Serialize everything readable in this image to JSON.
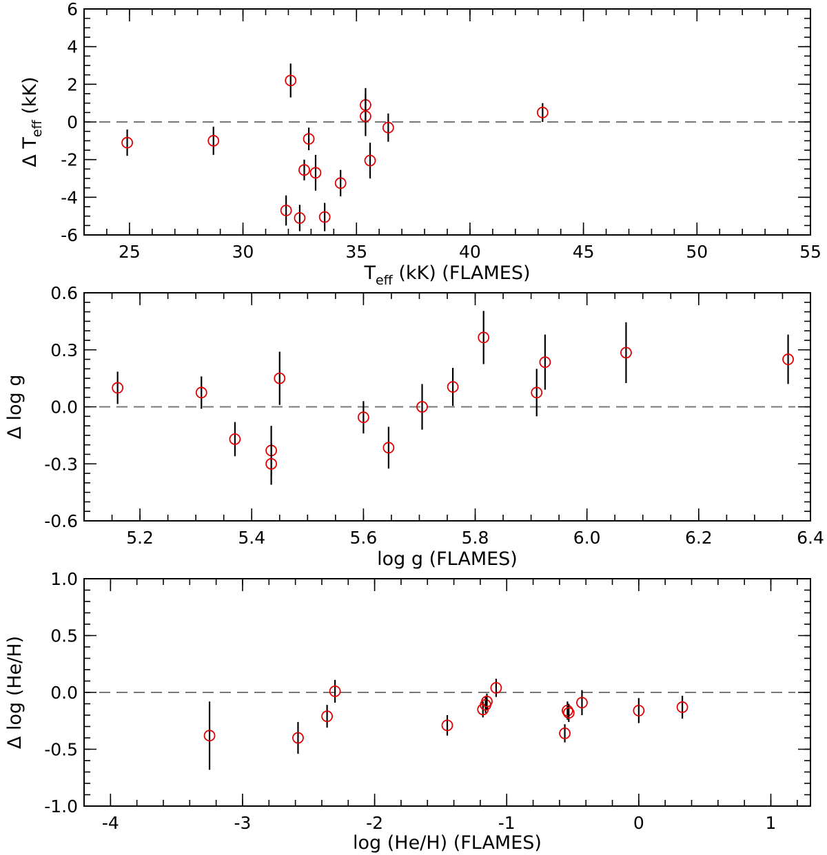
{
  "chart_data": [
    {
      "type": "scatter",
      "title": "",
      "xlabel": {
        "main": "T",
        "sub": "eff",
        "rest": " (kK) (FLAMES)"
      },
      "ylabel": {
        "main": "Δ T",
        "sub": "eff",
        "rest": " (kK)"
      },
      "xlim": [
        23,
        55
      ],
      "ylim": [
        -6,
        6
      ],
      "xticks": [
        25,
        30,
        35,
        40,
        45,
        50,
        55
      ],
      "xtick_labels": [
        "25",
        "30",
        "35",
        "40",
        "45",
        "50",
        "55"
      ],
      "yticks": [
        -6,
        -4,
        -2,
        0,
        2,
        4,
        6
      ],
      "ytick_labels": [
        "-6",
        "-4",
        "-2",
        "0",
        "2",
        "4",
        "6"
      ],
      "x_minor_step": 1,
      "y_minor_step": 0.5,
      "reference_line": 0,
      "points": [
        {
          "x": 24.9,
          "y": -1.1,
          "err": 0.7
        },
        {
          "x": 28.7,
          "y": -1.0,
          "err": 0.75
        },
        {
          "x": 31.9,
          "y": -4.7,
          "err": 0.8
        },
        {
          "x": 32.1,
          "y": 2.2,
          "err": 0.9
        },
        {
          "x": 32.5,
          "y": -5.1,
          "err": 0.7
        },
        {
          "x": 32.7,
          "y": -2.55,
          "err": 0.55
        },
        {
          "x": 32.9,
          "y": -0.9,
          "err": 0.6
        },
        {
          "x": 33.2,
          "y": -2.7,
          "err": 0.95
        },
        {
          "x": 33.6,
          "y": -5.05,
          "err": 0.75
        },
        {
          "x": 34.3,
          "y": -3.25,
          "err": 0.7
        },
        {
          "x": 35.4,
          "y": 0.9,
          "err": 0.9
        },
        {
          "x": 35.4,
          "y": 0.3,
          "err": 1.05
        },
        {
          "x": 35.6,
          "y": -2.05,
          "err": 0.95
        },
        {
          "x": 36.4,
          "y": -0.3,
          "err": 0.75
        },
        {
          "x": 43.2,
          "y": 0.5,
          "err": 0.5
        }
      ]
    },
    {
      "type": "scatter",
      "title": "",
      "xlabel": {
        "main": "log g (FLAMES)"
      },
      "ylabel": {
        "main": "Δ log g"
      },
      "xlim": [
        5.1,
        6.4
      ],
      "ylim": [
        -0.6,
        0.6
      ],
      "xticks": [
        5.2,
        5.4,
        5.6,
        5.8,
        6.0,
        6.2,
        6.4
      ],
      "xtick_labels": [
        "5.2",
        "5.4",
        "5.6",
        "5.8",
        "6.0",
        "6.2",
        "6.4"
      ],
      "yticks": [
        -0.6,
        -0.3,
        0.0,
        0.3,
        0.6
      ],
      "ytick_labels": [
        "-0.6",
        "-0.3",
        "0.0",
        "0.3",
        "0.6"
      ],
      "x_minor_step": 0.05,
      "y_minor_step": 0.05,
      "reference_line": 0,
      "points": [
        {
          "x": 5.16,
          "y": 0.1,
          "err": 0.085
        },
        {
          "x": 5.31,
          "y": 0.075,
          "err": 0.085
        },
        {
          "x": 5.37,
          "y": -0.17,
          "err": 0.09
        },
        {
          "x": 5.435,
          "y": -0.23,
          "err": 0.13
        },
        {
          "x": 5.435,
          "y": -0.3,
          "err": 0.11
        },
        {
          "x": 5.45,
          "y": 0.15,
          "err": 0.14
        },
        {
          "x": 5.6,
          "y": -0.055,
          "err": 0.085
        },
        {
          "x": 5.645,
          "y": -0.215,
          "err": 0.11
        },
        {
          "x": 5.705,
          "y": 0.0,
          "err": 0.12
        },
        {
          "x": 5.76,
          "y": 0.105,
          "err": 0.1
        },
        {
          "x": 5.815,
          "y": 0.365,
          "err": 0.14
        },
        {
          "x": 5.91,
          "y": 0.075,
          "err": 0.125
        },
        {
          "x": 5.925,
          "y": 0.235,
          "err": 0.145
        },
        {
          "x": 6.07,
          "y": 0.285,
          "err": 0.16
        },
        {
          "x": 6.36,
          "y": 0.25,
          "err": 0.13
        }
      ]
    },
    {
      "type": "scatter",
      "title": "",
      "xlabel": {
        "main": "log (He/H) (FLAMES)"
      },
      "ylabel": {
        "main": "Δ log (He/H)"
      },
      "xlim": [
        -4.2,
        1.3
      ],
      "ylim": [
        -1.0,
        1.0
      ],
      "xticks": [
        -4,
        -3,
        -2,
        -1,
        0,
        1
      ],
      "xtick_labels": [
        "-4",
        "-3",
        "-2",
        "-1",
        "0",
        "1"
      ],
      "yticks": [
        -1.0,
        -0.5,
        0.0,
        0.5,
        1.0
      ],
      "ytick_labels": [
        "-1.0",
        "-0.5",
        "0.0",
        "0.5",
        "1.0"
      ],
      "x_minor_step": 0.2,
      "y_minor_step": 0.1,
      "reference_line": 0,
      "points": [
        {
          "x": -3.25,
          "y": -0.38,
          "err": 0.3
        },
        {
          "x": -2.58,
          "y": -0.4,
          "err": 0.14
        },
        {
          "x": -2.36,
          "y": -0.21,
          "err": 0.1
        },
        {
          "x": -2.3,
          "y": 0.01,
          "err": 0.1
        },
        {
          "x": -1.45,
          "y": -0.29,
          "err": 0.09
        },
        {
          "x": -1.18,
          "y": -0.15,
          "err": 0.07
        },
        {
          "x": -1.16,
          "y": -0.11,
          "err": 0.07
        },
        {
          "x": -1.15,
          "y": -0.08,
          "err": 0.07
        },
        {
          "x": -1.08,
          "y": 0.04,
          "err": 0.08
        },
        {
          "x": -0.56,
          "y": -0.36,
          "err": 0.08
        },
        {
          "x": -0.54,
          "y": -0.16,
          "err": 0.08
        },
        {
          "x": -0.53,
          "y": -0.18,
          "err": 0.08
        },
        {
          "x": -0.43,
          "y": -0.09,
          "err": 0.11
        },
        {
          "x": 0.0,
          "y": -0.16,
          "err": 0.11
        },
        {
          "x": 0.33,
          "y": -0.13,
          "err": 0.1
        }
      ]
    }
  ]
}
